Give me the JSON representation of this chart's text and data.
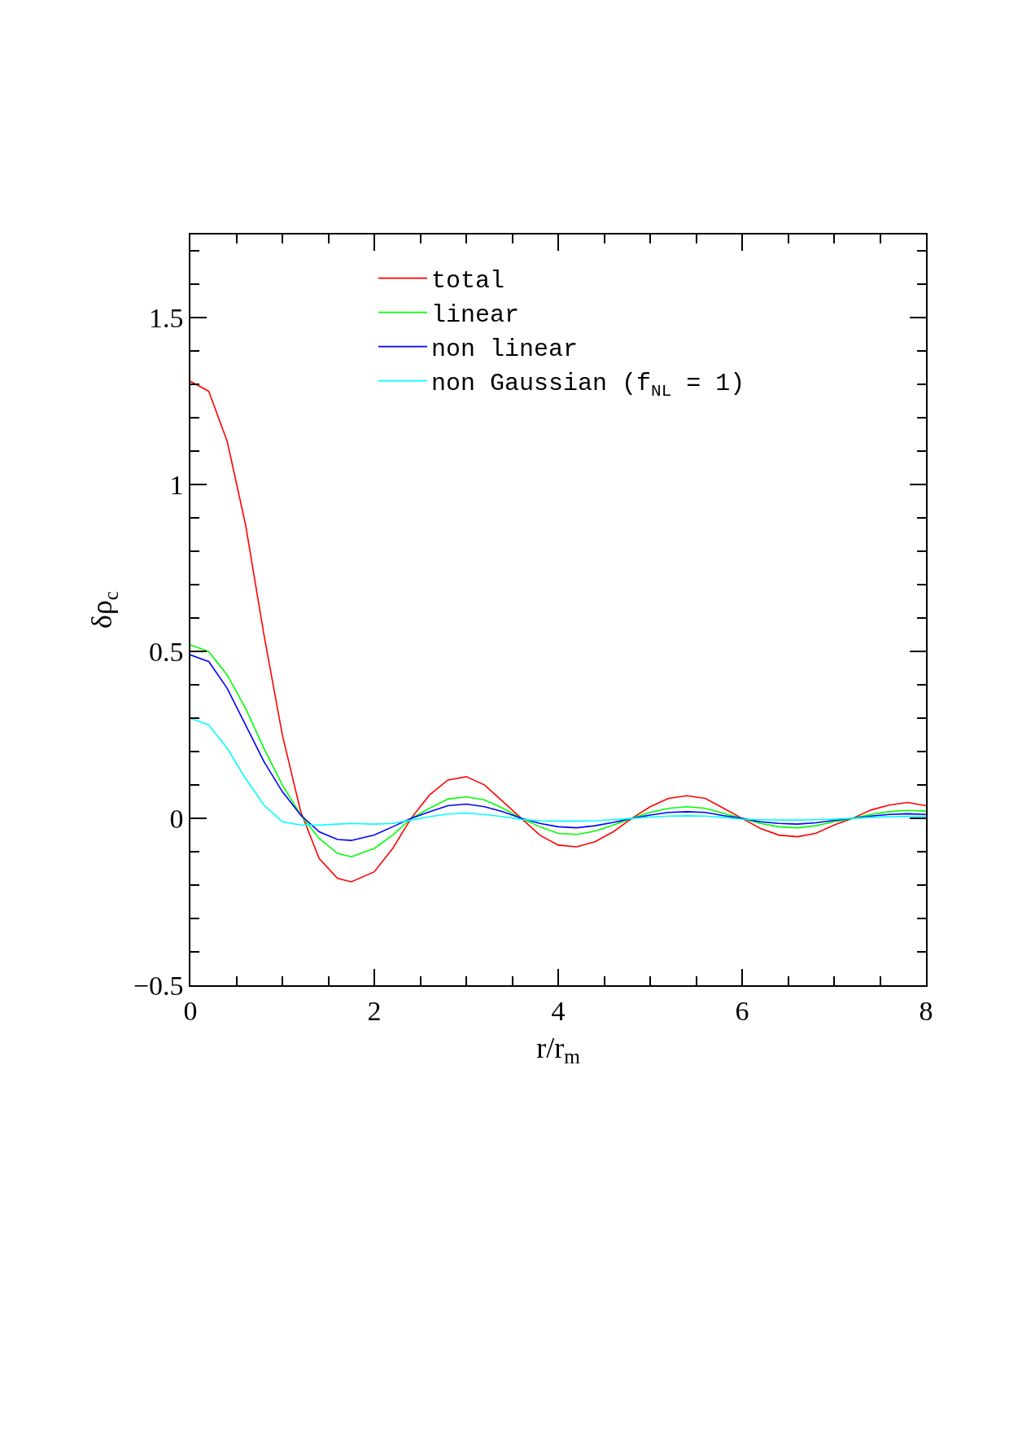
{
  "chart_data": {
    "type": "line",
    "xlabel": "r/r$_{m}$",
    "ylabel": "δρ$_{c}$",
    "x": [
      0,
      0.2,
      0.4,
      0.6,
      0.8,
      1.0,
      1.2,
      1.4,
      1.6,
      1.75,
      2.0,
      2.2,
      2.4,
      2.6,
      2.8,
      3.0,
      3.2,
      3.4,
      3.6,
      3.8,
      4.0,
      4.2,
      4.4,
      4.6,
      4.8,
      5.0,
      5.2,
      5.4,
      5.6,
      5.8,
      6.0,
      6.2,
      6.4,
      6.6,
      6.8,
      7.0,
      7.2,
      7.4,
      7.6,
      7.8,
      8.0
    ],
    "series": [
      {
        "name": "total",
        "color": "#ff0000",
        "values": [
          1.31,
          1.28,
          1.13,
          0.88,
          0.55,
          0.25,
          0.02,
          -0.12,
          -0.18,
          -0.19,
          -0.16,
          -0.09,
          0.0,
          0.07,
          0.115,
          0.125,
          0.1,
          0.05,
          0.0,
          -0.05,
          -0.08,
          -0.085,
          -0.07,
          -0.04,
          0.0,
          0.035,
          0.06,
          0.068,
          0.06,
          0.03,
          0.0,
          -0.03,
          -0.05,
          -0.055,
          -0.045,
          -0.02,
          0.0,
          0.025,
          0.04,
          0.048,
          0.038
        ]
      },
      {
        "name": "linear",
        "color": "#00ff00",
        "values": [
          0.52,
          0.5,
          0.43,
          0.33,
          0.21,
          0.1,
          0.01,
          -0.06,
          -0.105,
          -0.115,
          -0.09,
          -0.05,
          0.0,
          0.03,
          0.058,
          0.065,
          0.055,
          0.03,
          0.0,
          -0.025,
          -0.045,
          -0.048,
          -0.038,
          -0.02,
          0.0,
          0.018,
          0.03,
          0.035,
          0.03,
          0.015,
          0.0,
          -0.015,
          -0.025,
          -0.028,
          -0.022,
          -0.01,
          0.0,
          0.012,
          0.02,
          0.024,
          0.022
        ]
      },
      {
        "name": "non linear",
        "color": "#0000ff",
        "values": [
          0.49,
          0.47,
          0.39,
          0.28,
          0.17,
          0.08,
          0.01,
          -0.04,
          -0.063,
          -0.066,
          -0.05,
          -0.025,
          0.0,
          0.02,
          0.038,
          0.043,
          0.035,
          0.02,
          0.0,
          -0.015,
          -0.025,
          -0.028,
          -0.022,
          -0.012,
          0.0,
          0.01,
          0.018,
          0.02,
          0.018,
          0.008,
          0.0,
          -0.01,
          -0.015,
          -0.017,
          -0.013,
          -0.006,
          0.0,
          0.007,
          0.012,
          0.014,
          0.012
        ]
      },
      {
        "name": "non Gaussian (f$_{NL}$ = 1)",
        "color": "#00ffff",
        "values": [
          0.3,
          0.28,
          0.21,
          0.12,
          0.04,
          -0.01,
          -0.02,
          -0.02,
          -0.017,
          -0.015,
          -0.017,
          -0.015,
          -0.005,
          0.005,
          0.013,
          0.016,
          0.012,
          0.005,
          -0.003,
          -0.007,
          -0.008,
          -0.008,
          -0.007,
          -0.004,
          0.0,
          0.004,
          0.007,
          0.008,
          0.007,
          0.003,
          -0.002,
          -0.004,
          -0.005,
          -0.005,
          -0.004,
          -0.002,
          0.0,
          0.003,
          0.005,
          0.006,
          0.006
        ]
      }
    ],
    "xlim": [
      0,
      8
    ],
    "xticks": [
      0,
      {
        "value": 0.5,
        "label": null
      },
      {
        "value": 1,
        "label": null
      },
      {
        "value": 1.5,
        "label": null
      },
      2,
      {
        "value": 2.5,
        "label": null
      },
      {
        "value": 3,
        "label": null
      },
      {
        "value": 3.5,
        "label": null
      },
      4,
      {
        "value": 4.5,
        "label": null
      },
      {
        "value": 5,
        "label": null
      },
      {
        "value": 5.5,
        "label": null
      },
      6,
      {
        "value": 6.5,
        "label": null
      },
      {
        "value": 7,
        "label": null
      },
      {
        "value": 7.5,
        "label": null
      },
      8
    ],
    "ylim": [
      -0.5,
      1.75
    ],
    "yticks": [
      {
        "value": -0.5,
        "label": "−0.5"
      },
      {
        "value": -0.4,
        "label": null
      },
      {
        "value": -0.3,
        "label": null
      },
      {
        "value": -0.2,
        "label": null
      },
      {
        "value": -0.1,
        "label": null
      },
      0,
      {
        "value": 0.1,
        "label": null
      },
      {
        "value": 0.2,
        "label": null
      },
      {
        "value": 0.3,
        "label": null
      },
      {
        "value": 0.4,
        "label": null
      },
      0.5,
      {
        "value": 0.6,
        "label": null
      },
      {
        "value": 0.7,
        "label": null
      },
      {
        "value": 0.8,
        "label": null
      },
      {
        "value": 0.9,
        "label": null
      },
      1,
      {
        "value": 1.1,
        "label": null
      },
      {
        "value": 1.2,
        "label": null
      },
      {
        "value": 1.3,
        "label": null
      },
      {
        "value": 1.4,
        "label": null
      },
      1.5,
      {
        "value": 1.6,
        "label": null
      },
      {
        "value": 1.7,
        "label": null
      }
    ],
    "legend": "top",
    "grid": false,
    "marker": "none",
    "line_style": "solid"
  }
}
